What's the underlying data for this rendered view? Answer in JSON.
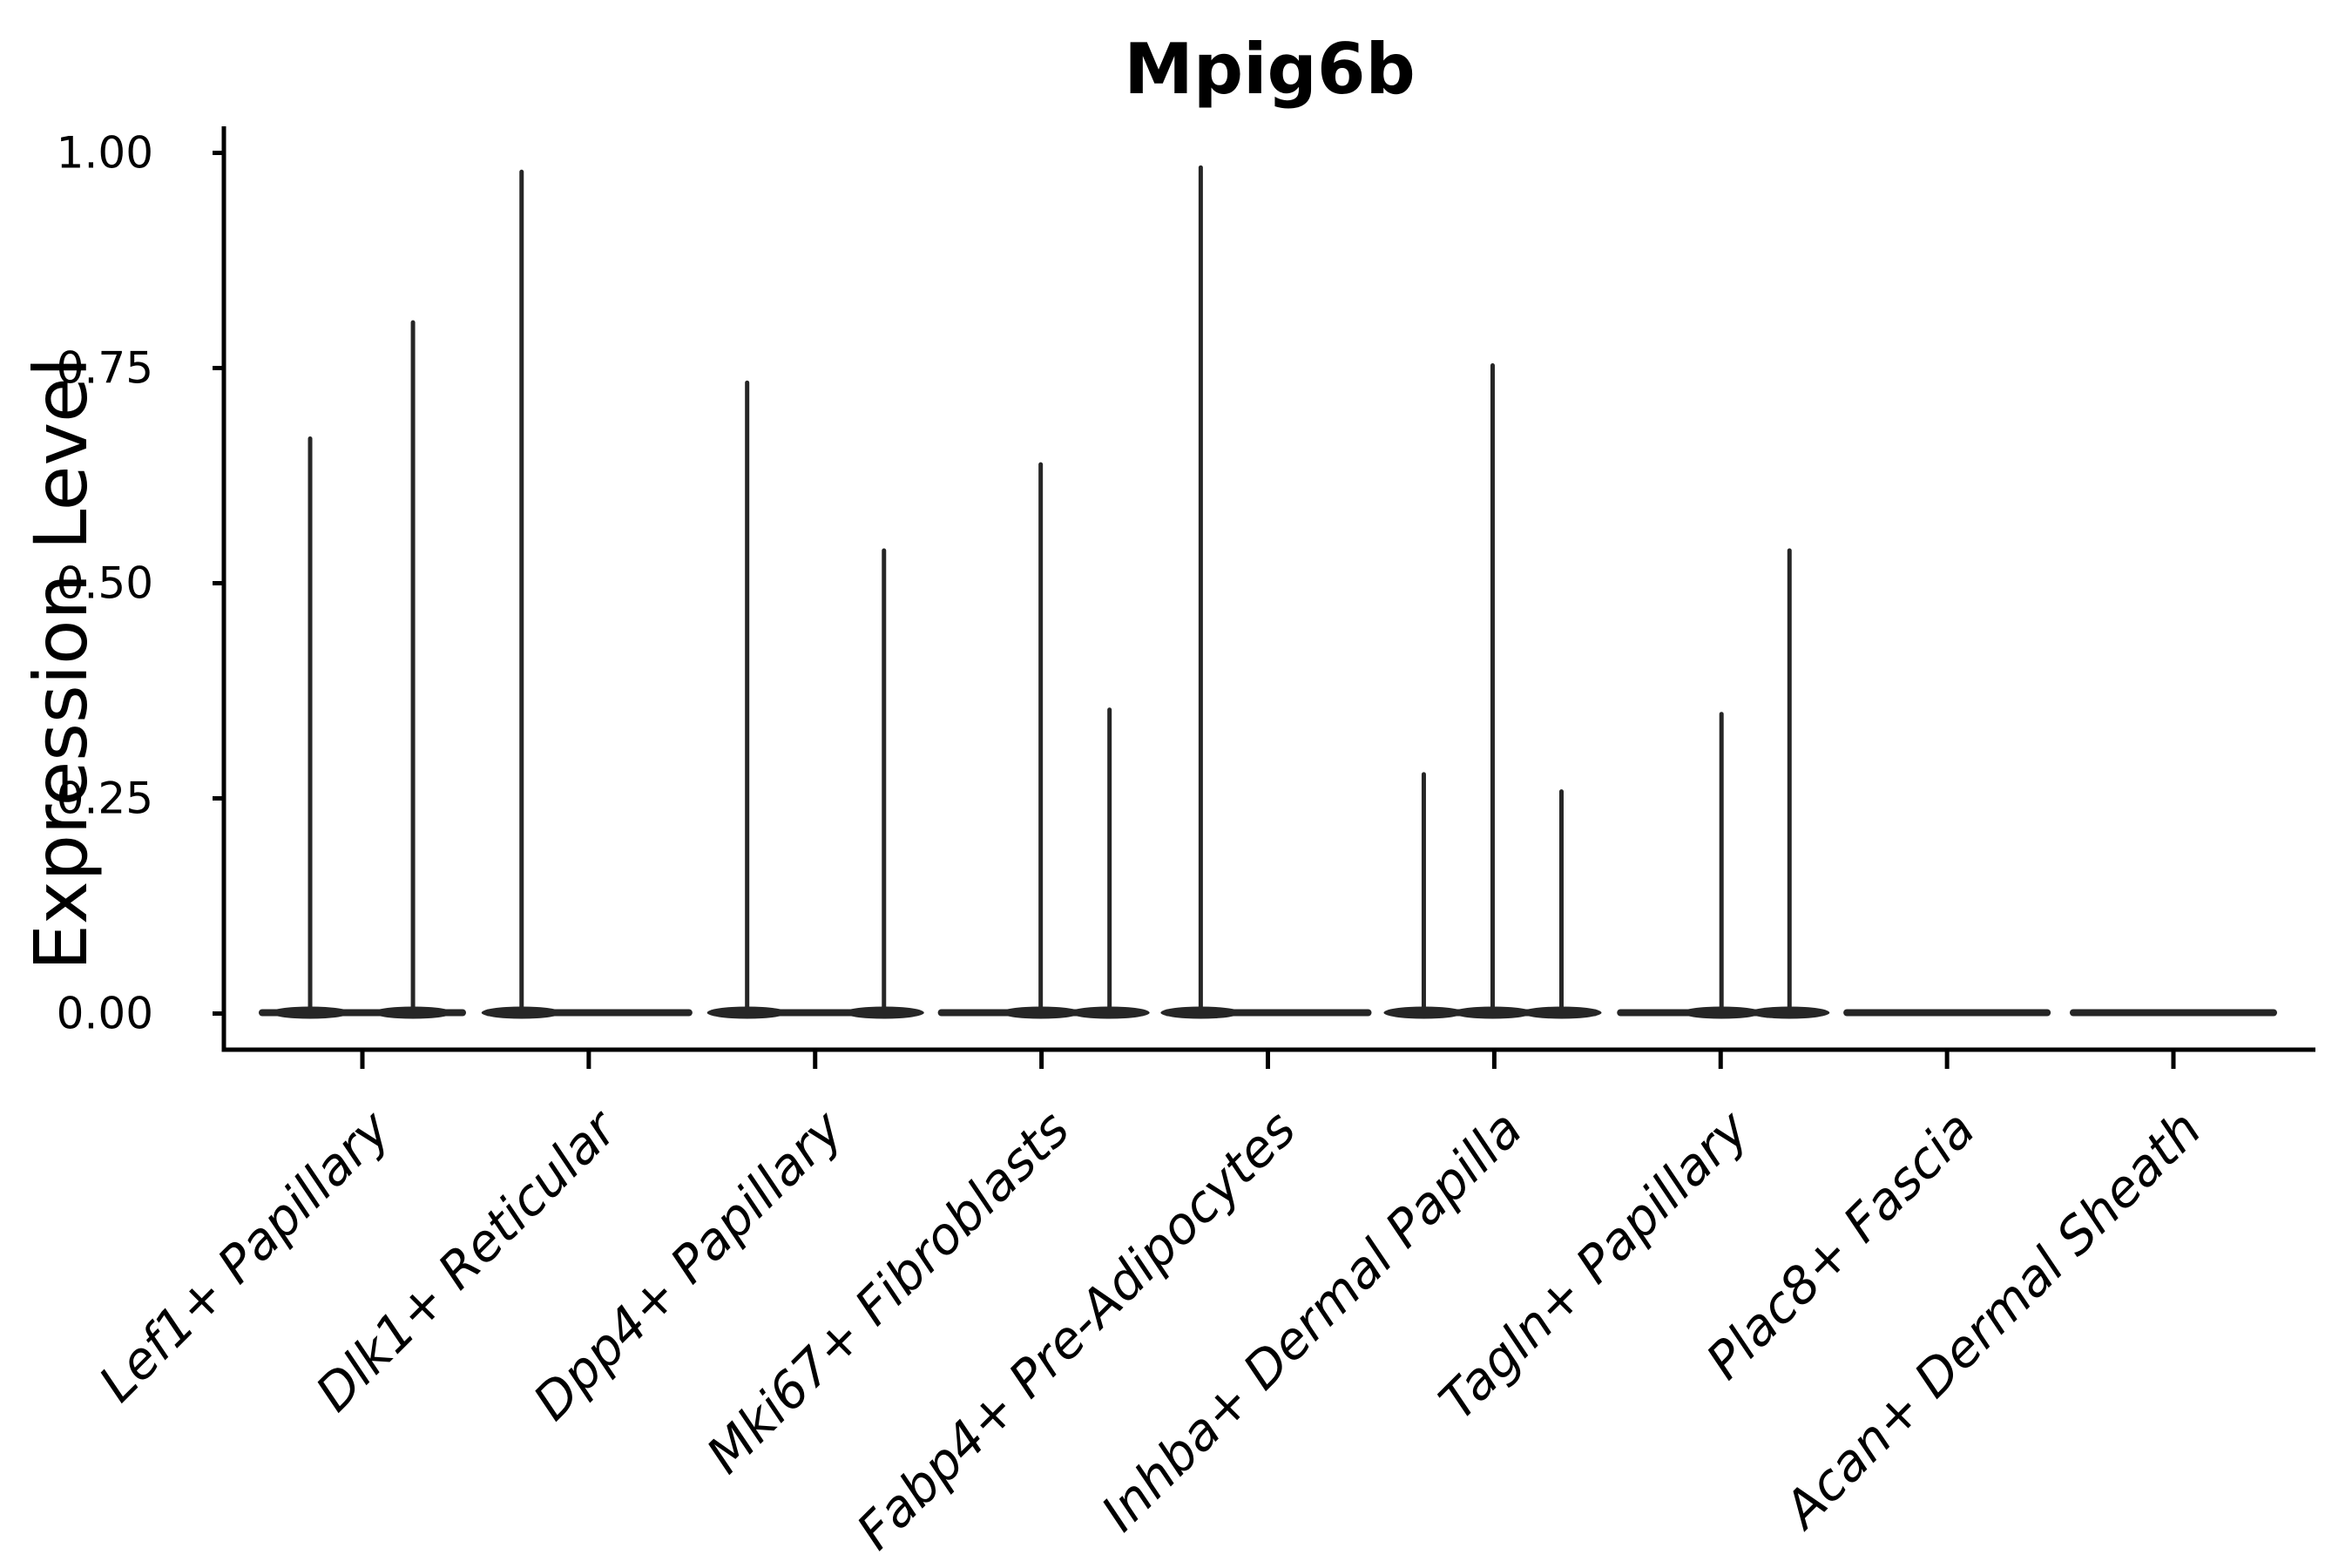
{
  "colors": {
    "background": "#ffffff",
    "axis": "#000000",
    "text": "#000000",
    "violin": "#262626"
  },
  "chart_data": {
    "type": "violin",
    "title": "Mpig6b",
    "xlabel": "",
    "ylabel": "Expression Level",
    "ylim": [
      0,
      1.0
    ],
    "yticks": [
      0.0,
      0.25,
      0.5,
      0.75,
      1.0
    ],
    "ytick_labels": [
      "0.00",
      "0.25",
      "0.50",
      "0.75",
      "1.00"
    ],
    "grid": false,
    "legend": null,
    "categories": [
      "Lef1+ Papillary",
      "Dlk1+ Reticular",
      "Dpp4+ Papillary",
      "Mki67+ Fibroblasts",
      "Fabp4+ Pre-Adipocytes",
      "Inhba+ Dermal Papilla",
      "Tagln+ Papillary",
      "Plac8+ Fascia",
      "Acan+ Dermal Sheath"
    ],
    "violins": [
      {
        "category": "Lef1+ Papillary",
        "spikes": [
          {
            "pos": 0.248,
            "max": 0.67
          },
          {
            "pos": 0.744,
            "max": 0.805
          }
        ]
      },
      {
        "category": "Dlk1+ Reticular",
        "spikes": [
          {
            "pos": 0.176,
            "max": 0.98
          }
        ]
      },
      {
        "category": "Dpp4+ Papillary",
        "spikes": [
          {
            "pos": 0.172,
            "max": 0.735
          },
          {
            "pos": 0.832,
            "max": 0.54
          }
        ]
      },
      {
        "category": "Mki67+ Fibroblasts",
        "spikes": [
          {
            "pos": 0.496,
            "max": 0.64
          },
          {
            "pos": 0.828,
            "max": 0.355
          }
        ]
      },
      {
        "category": "Fabp4+ Pre-Adipocytes",
        "spikes": [
          {
            "pos": 0.176,
            "max": 0.985
          }
        ]
      },
      {
        "category": "Inhba+ Dermal Papilla",
        "spikes": [
          {
            "pos": 0.16,
            "max": 0.28
          },
          {
            "pos": 0.492,
            "max": 0.755
          },
          {
            "pos": 0.824,
            "max": 0.26
          }
        ]
      },
      {
        "category": "Tagln+ Papillary",
        "spikes": [
          {
            "pos": 0.504,
            "max": 0.35
          },
          {
            "pos": 0.832,
            "max": 0.54
          }
        ]
      },
      {
        "category": "Plac8+ Fascia",
        "spikes": []
      },
      {
        "category": "Acan+ Dermal Sheath",
        "spikes": []
      }
    ]
  }
}
